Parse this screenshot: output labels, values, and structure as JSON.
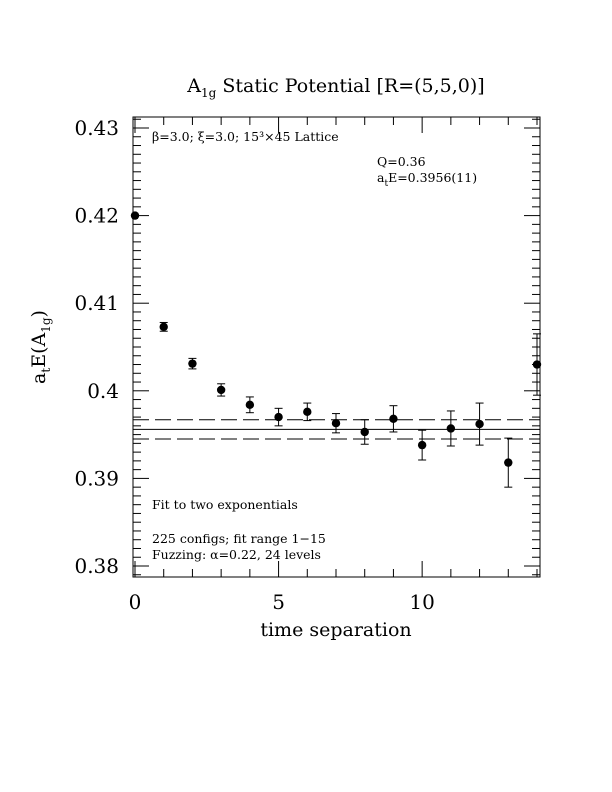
{
  "chart_data": {
    "type": "scatter",
    "title_main": "A",
    "title_sub": "1g",
    "title_rest": " Static Potential [R=(5,5,0)]",
    "xlabel": "time separation",
    "ylabel_main": "a",
    "ylabel_t": "t",
    "ylabel_mid": "E(A",
    "ylabel_sub": "1g",
    "ylabel_end": ")",
    "xlim": [
      0,
      14
    ],
    "ylim": [
      0.379,
      0.431
    ],
    "x_ticks": [
      0,
      5,
      10
    ],
    "x_tick_labels": [
      "0",
      "5",
      "10"
    ],
    "y_ticks": [
      0.38,
      0.39,
      0.4,
      0.41,
      0.42,
      0.43
    ],
    "y_tick_labels": [
      "0.38",
      "0.39",
      "0.4",
      "0.41",
      "0.42",
      "0.43"
    ],
    "points": [
      {
        "x": 0,
        "y": 0.42,
        "err": 0.0
      },
      {
        "x": 1,
        "y": 0.4073,
        "err": 0.0005
      },
      {
        "x": 2,
        "y": 0.4031,
        "err": 0.0006
      },
      {
        "x": 3,
        "y": 0.4001,
        "err": 0.0007
      },
      {
        "x": 4,
        "y": 0.3984,
        "err": 0.0009
      },
      {
        "x": 5,
        "y": 0.397,
        "err": 0.001
      },
      {
        "x": 6,
        "y": 0.3976,
        "err": 0.001
      },
      {
        "x": 7,
        "y": 0.3963,
        "err": 0.0011
      },
      {
        "x": 8,
        "y": 0.3953,
        "err": 0.0014
      },
      {
        "x": 9,
        "y": 0.3968,
        "err": 0.0015
      },
      {
        "x": 10,
        "y": 0.3938,
        "err": 0.0017
      },
      {
        "x": 11,
        "y": 0.3957,
        "err": 0.002
      },
      {
        "x": 12,
        "y": 0.3962,
        "err": 0.0024
      },
      {
        "x": 13,
        "y": 0.3918,
        "err": 0.0028
      },
      {
        "x": 14,
        "y": 0.403,
        "err": 0.0035
      }
    ],
    "fit": {
      "value": 0.3956,
      "err": 0.0011,
      "x_range": [
        0,
        14
      ]
    },
    "annotations": {
      "lattice": "β=3.0; ξ=3.0; 15³×45 Lattice",
      "q": "Q=0.36",
      "ate_main": "a",
      "ate_sub": "t",
      "ate_rest": "E=0.3956(11)",
      "fit_note": "Fit to two exponentials",
      "configs": "225 configs; fit range 1−15",
      "fuzzing": "Fuzzing: α=0.22, 24 levels"
    }
  }
}
